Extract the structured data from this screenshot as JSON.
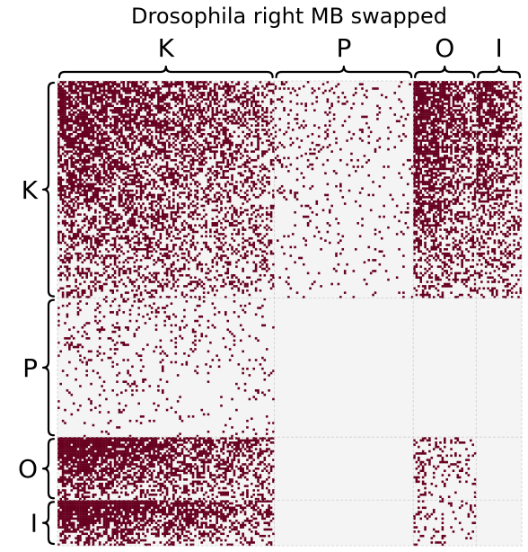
{
  "chart_data": {
    "type": "heatmap",
    "title": "Drosophila right MB swapped",
    "xlabel": "",
    "ylabel": "",
    "groups": [
      {
        "label": "K",
        "size": 100
      },
      {
        "label": "P",
        "size": 64
      },
      {
        "label": "O",
        "size": 29
      },
      {
        "label": "I",
        "size": 21
      }
    ],
    "connection_probability": {
      "rows": [
        "K",
        "P",
        "O",
        "I"
      ],
      "cols": [
        "K",
        "P",
        "O",
        "I"
      ],
      "values": [
        [
          0.55,
          0.09,
          0.62,
          0.55
        ],
        [
          0.09,
          0.0,
          0.0,
          0.0
        ],
        [
          0.7,
          0.0,
          0.22,
          0.0
        ],
        [
          0.72,
          0.0,
          0.15,
          0.0
        ]
      ]
    },
    "legend": "none",
    "grid": true,
    "colors": {
      "edge": "#67001f",
      "background": "#f4f4f4",
      "divider": "#cfcfcf"
    }
  }
}
